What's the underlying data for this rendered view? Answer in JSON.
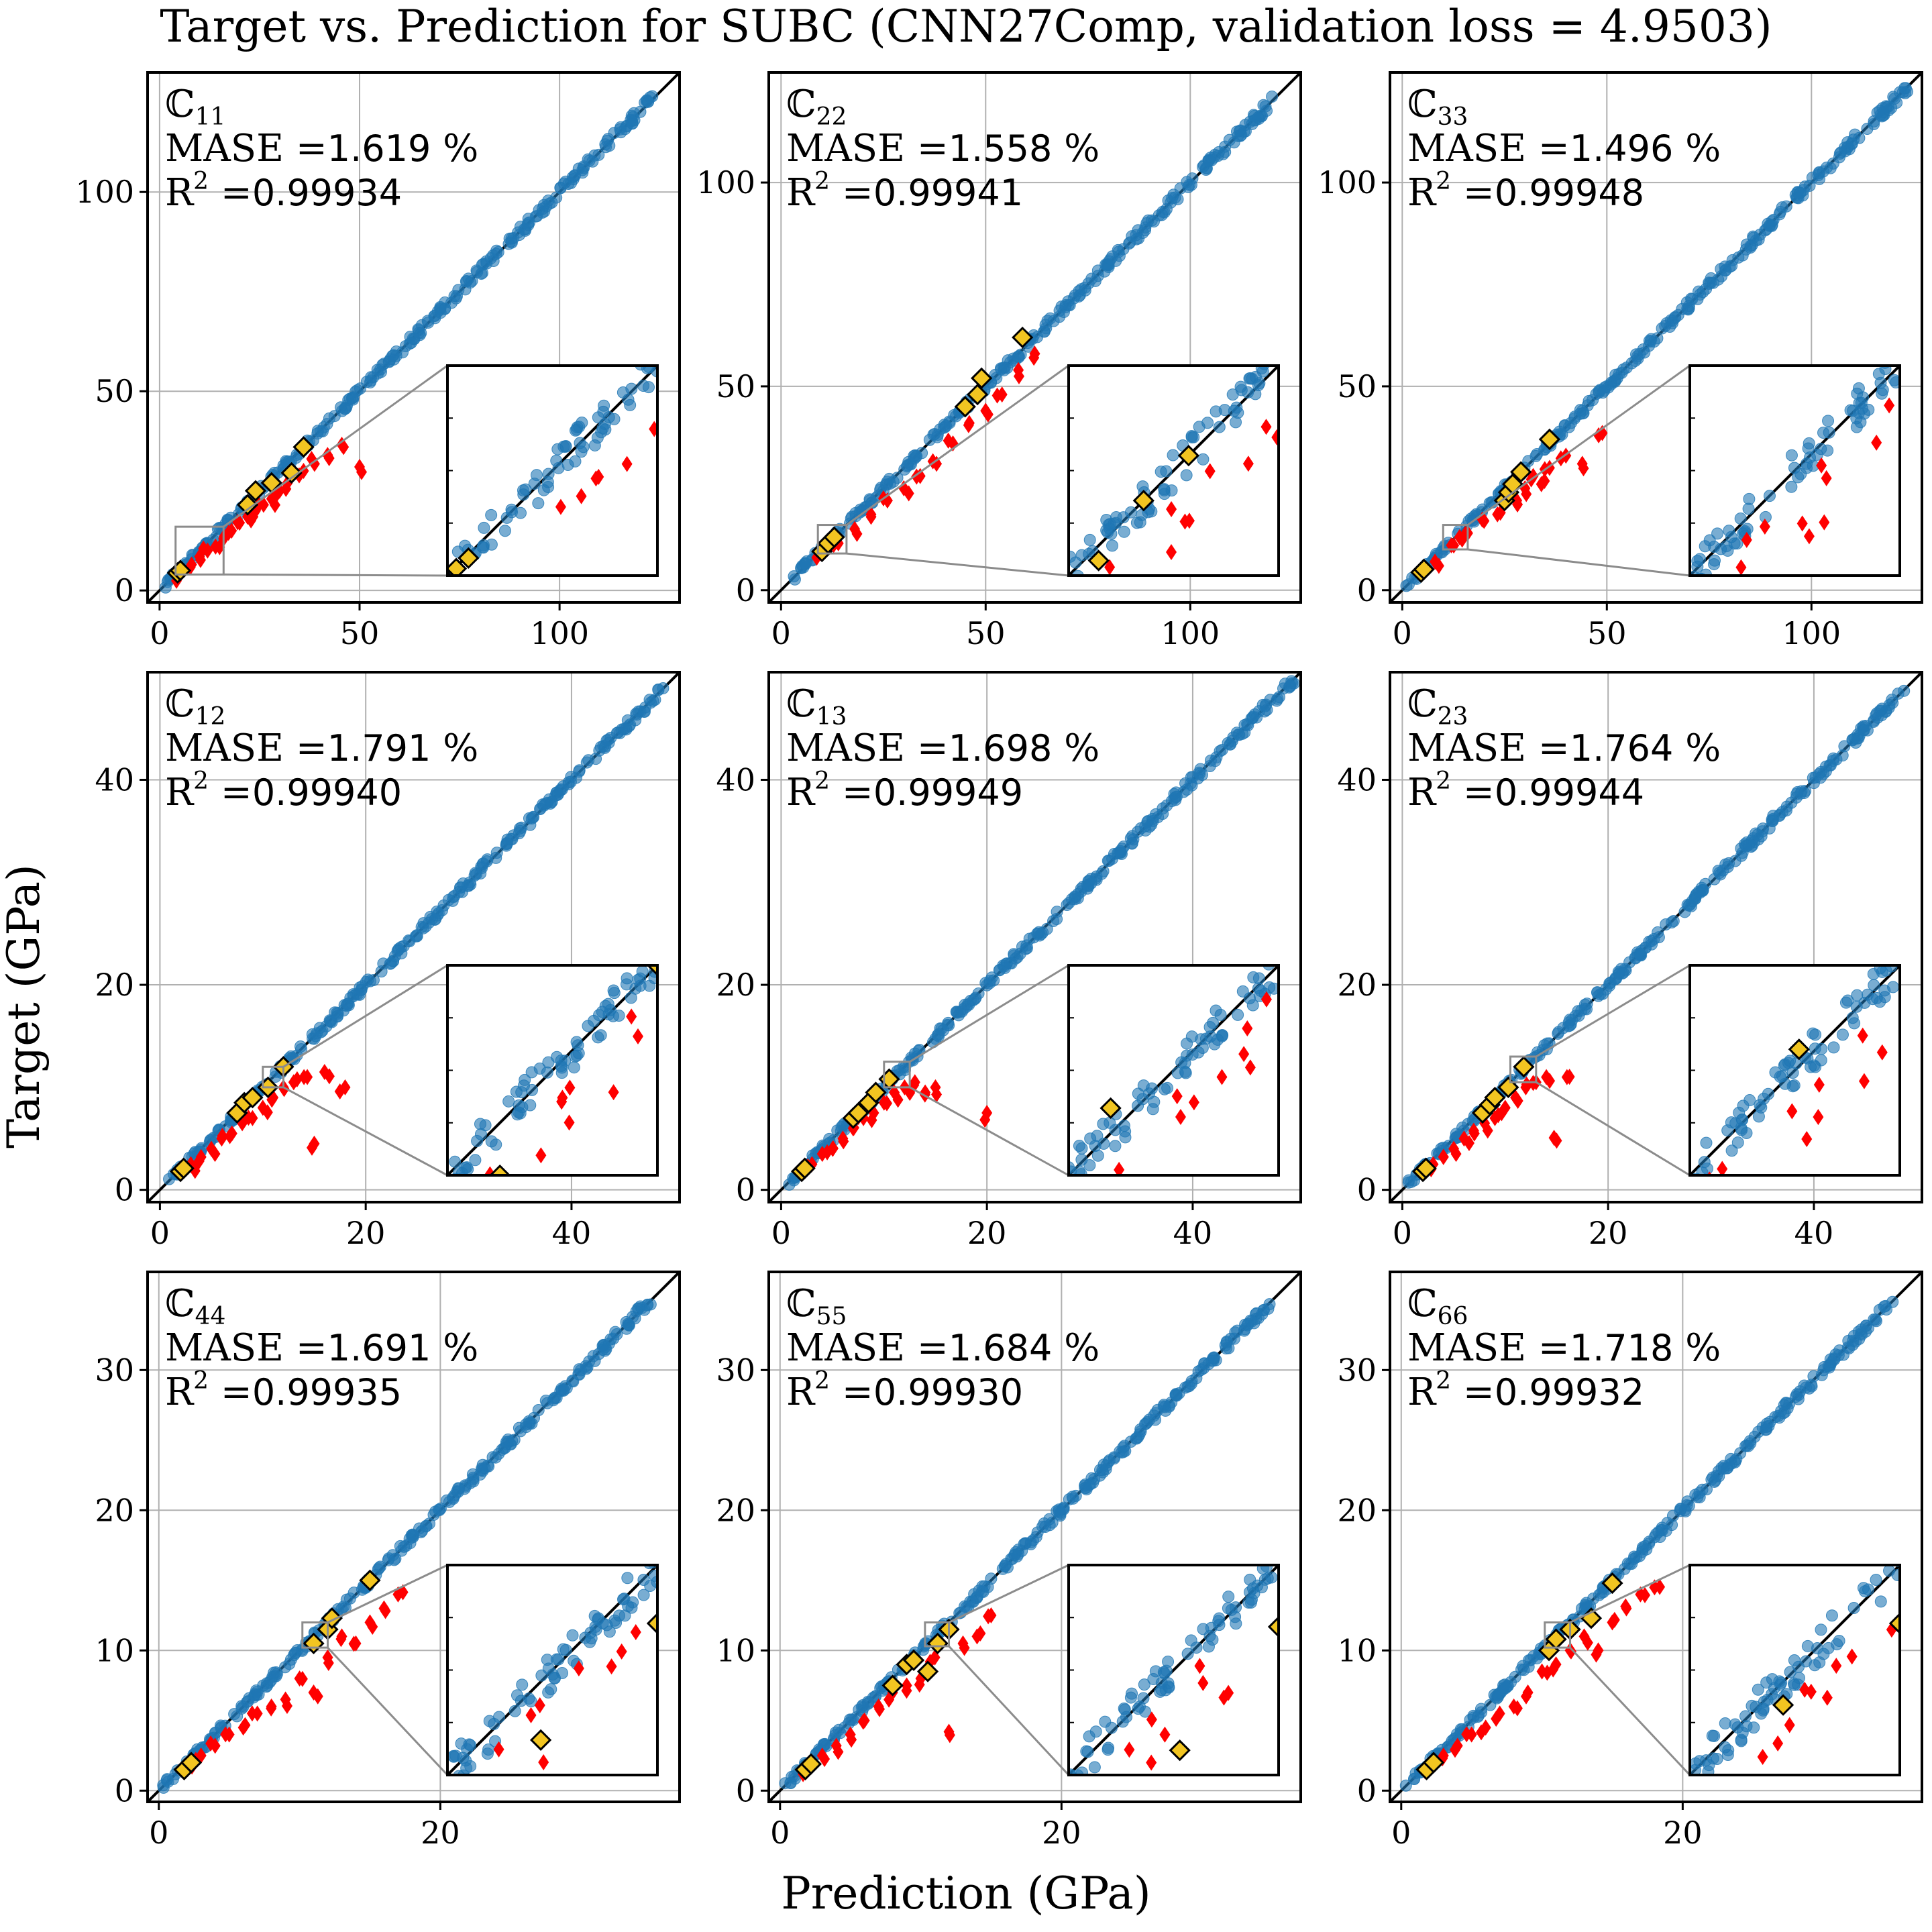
{
  "title": "Target vs. Prediction for SUBC (CNN27Comp,  validation loss = 4.9503)",
  "xlabel": "Prediction (GPa)",
  "ylabel": "Target (GPa)",
  "colors": {
    "blue": "#1f77b4",
    "red": "#ff0000",
    "yellow": "#f2c521",
    "grid": "#b0b0b0",
    "diagonal": "#000000"
  },
  "chart_data": [
    {
      "type": "scatter",
      "component": "ℂ",
      "sub": "11",
      "mase_label": "MASE =",
      "mase": "1.619",
      "mase_unit": " %",
      "r2_label": "R",
      "r2_sup": "2",
      "r2_eq": " =",
      "r2": "0.99934",
      "xlim": [
        -3,
        130
      ],
      "ylim": [
        -3,
        130
      ],
      "xticks": [
        0,
        50,
        100
      ],
      "yticks": [
        0,
        50,
        100
      ],
      "grid": true,
      "inset": {
        "x_range": [
          4,
          16
        ],
        "y_range": [
          4,
          16
        ]
      },
      "blue_x": [
        0.5,
        5,
        10,
        20,
        30,
        40,
        50,
        60,
        70,
        80,
        90,
        100,
        110,
        120,
        124
      ],
      "red_x": [
        4,
        8,
        10,
        12,
        14,
        16,
        18,
        20,
        22,
        24,
        26,
        28,
        30,
        32,
        36,
        38,
        42,
        46,
        50
      ],
      "red_y": [
        3.8,
        6.5,
        8.5,
        10,
        11,
        13,
        15,
        17,
        18.5,
        20,
        21.5,
        23,
        25,
        27,
        30,
        33,
        34,
        36,
        31
      ],
      "yellow_x": [
        4.5,
        5.2,
        22,
        24,
        28,
        33,
        36
      ],
      "yellow_y": [
        4.4,
        5.0,
        21.5,
        25,
        27,
        29.5,
        36
      ]
    },
    {
      "type": "scatter",
      "component": "ℂ",
      "sub": "22",
      "mase_label": "MASE =",
      "mase": "1.558",
      "mase_unit": " %",
      "r2_label": "R",
      "r2_sup": "2",
      "r2_eq": " =",
      "r2": "0.99941",
      "xlim": [
        -3,
        127
      ],
      "ylim": [
        -3,
        127
      ],
      "xticks": [
        0,
        50,
        100
      ],
      "yticks": [
        0,
        50,
        100
      ],
      "grid": true,
      "inset": {
        "x_range": [
          9,
          16
        ],
        "y_range": [
          9,
          16
        ]
      },
      "blue_x": [
        2,
        8,
        15,
        25,
        35,
        45,
        55,
        65,
        75,
        85,
        95,
        105,
        115,
        122
      ],
      "red_x": [
        10,
        14,
        18,
        22,
        26,
        30,
        34,
        38,
        42,
        46,
        50,
        54,
        58,
        62
      ],
      "red_y": [
        9,
        11.5,
        15,
        18,
        22,
        25,
        28,
        31,
        36,
        41,
        44,
        48,
        54,
        58
      ],
      "yellow_x": [
        10,
        11.5,
        13,
        45,
        48,
        49,
        59
      ],
      "yellow_y": [
        9.5,
        11.5,
        13,
        45,
        48,
        52,
        62
      ]
    },
    {
      "type": "scatter",
      "component": "ℂ",
      "sub": "33",
      "mase_label": "MASE =",
      "mase": "1.496",
      "mase_unit": " %",
      "r2_label": "R",
      "r2_sup": "2",
      "r2_eq": " =",
      "r2": "0.99948",
      "xlim": [
        -3,
        127
      ],
      "ylim": [
        -3,
        127
      ],
      "xticks": [
        0,
        50,
        100
      ],
      "yticks": [
        0,
        50,
        100
      ],
      "grid": true,
      "inset": {
        "x_range": [
          10,
          16
        ],
        "y_range": [
          10,
          16
        ]
      },
      "blue_x": [
        1,
        5,
        10,
        20,
        30,
        40,
        50,
        60,
        70,
        80,
        90,
        100,
        110,
        120,
        124
      ],
      "red_x": [
        8,
        12,
        14,
        16,
        20,
        24,
        28,
        30,
        32,
        34,
        36,
        40,
        44,
        48
      ],
      "red_y": [
        7,
        11,
        13,
        14,
        17,
        19,
        22,
        25,
        28,
        26,
        30,
        33,
        31,
        38
      ],
      "yellow_x": [
        4.6,
        5.3,
        25,
        26,
        27,
        29,
        36
      ],
      "yellow_y": [
        4.4,
        5.1,
        22,
        24,
        26,
        29,
        37
      ]
    },
    {
      "type": "scatter",
      "component": "ℂ",
      "sub": "12",
      "mase_label": "MASE =",
      "mase": "1.791",
      "mase_unit": " %",
      "r2_label": "R",
      "r2_sup": "2",
      "r2_eq": " =",
      "r2": "0.99940",
      "xlim": [
        -1.2,
        50.5
      ],
      "ylim": [
        -1.2,
        50.5
      ],
      "xticks": [
        0,
        20,
        40
      ],
      "yticks": [
        0,
        20,
        40
      ],
      "grid": true,
      "inset": {
        "x_range": [
          10,
          12
        ],
        "y_range": [
          10,
          12
        ]
      },
      "blue_x": [
        0.5,
        2,
        4,
        6,
        8,
        10,
        14,
        18,
        22,
        26,
        30,
        34,
        38,
        42,
        46,
        49
      ],
      "red_x": [
        3,
        4,
        5,
        6,
        7,
        8,
        9,
        10,
        11,
        12,
        13,
        14,
        15,
        16,
        18
      ],
      "red_y": [
        2.5,
        3.2,
        4,
        5,
        5.5,
        6.5,
        7,
        8,
        9,
        10,
        10.5,
        11,
        4.5,
        11.5,
        10
      ],
      "yellow_x": [
        2,
        2.3,
        7.5,
        8.2,
        9,
        10.5,
        12
      ],
      "yellow_y": [
        1.8,
        2.1,
        7.5,
        8.5,
        9,
        10,
        12
      ]
    },
    {
      "type": "scatter",
      "component": "ℂ",
      "sub": "13",
      "mase_label": "MASE =",
      "mase": "1.698",
      "mase_unit": " %",
      "r2_label": "R",
      "r2_sup": "2",
      "r2_eq": " =",
      "r2": "0.99949",
      "xlim": [
        -1.2,
        50.5
      ],
      "ylim": [
        -1.2,
        50.5
      ],
      "xticks": [
        0,
        20,
        40
      ],
      "yticks": [
        0,
        20,
        40
      ],
      "grid": true,
      "inset": {
        "x_range": [
          10,
          12.5
        ],
        "y_range": [
          10,
          12.5
        ]
      },
      "blue_x": [
        0.5,
        2,
        4,
        6,
        8,
        10,
        14,
        18,
        22,
        26,
        30,
        34,
        38,
        42,
        46,
        50
      ],
      "red_x": [
        3,
        4,
        5,
        6,
        7,
        8,
        9,
        10,
        11,
        12,
        13,
        14,
        15,
        20
      ],
      "red_y": [
        2.5,
        3.5,
        4,
        5,
        6,
        7,
        7.5,
        8.5,
        9.5,
        10,
        10.5,
        9.5,
        10,
        7.5
      ],
      "yellow_x": [
        2,
        2.3,
        7,
        7.5,
        8.5,
        9.2,
        10.5
      ],
      "yellow_y": [
        1.8,
        2.1,
        7,
        7.5,
        8.5,
        9.5,
        10.8
      ]
    },
    {
      "type": "scatter",
      "component": "ℂ",
      "sub": "23",
      "mase_label": "MASE =",
      "mase": "1.764",
      "mase_unit": " %",
      "r2_label": "R",
      "r2_sup": "2",
      "r2_eq": " =",
      "r2": "0.99944",
      "xlim": [
        -1.2,
        50.5
      ],
      "ylim": [
        -1.2,
        50.5
      ],
      "xticks": [
        0,
        20,
        40
      ],
      "yticks": [
        0,
        20,
        40
      ],
      "grid": true,
      "inset": {
        "x_range": [
          10.5,
          13
        ],
        "y_range": [
          10.5,
          13
        ]
      },
      "blue_x": [
        0.5,
        2,
        4,
        6,
        8,
        10,
        14,
        18,
        22,
        26,
        30,
        34,
        38,
        42,
        46,
        49
      ],
      "red_x": [
        3,
        4,
        5,
        6,
        7,
        8,
        9,
        10,
        11,
        12,
        13,
        14,
        15,
        16
      ],
      "red_y": [
        2.5,
        3.2,
        4,
        5,
        5.5,
        6.5,
        7,
        8,
        9,
        10,
        10.5,
        11,
        4.8,
        11
      ],
      "yellow_x": [
        2,
        2.3,
        7.8,
        8.5,
        9,
        10.3,
        11.8
      ],
      "yellow_y": [
        1.8,
        2.1,
        7.5,
        8.3,
        9,
        10,
        12
      ]
    },
    {
      "type": "scatter",
      "component": "ℂ",
      "sub": "44",
      "mase_label": "MASE =",
      "mase": "1.691",
      "mase_unit": " %",
      "r2_label": "R",
      "r2_sup": "2",
      "r2_eq": " =",
      "r2": "0.99935",
      "xlim": [
        -0.8,
        37
      ],
      "ylim": [
        -0.8,
        37
      ],
      "xticks": [
        0,
        20
      ],
      "yticks": [
        0,
        10,
        20,
        30
      ],
      "grid": true,
      "inset": {
        "x_range": [
          10.2,
          12
        ],
        "y_range": [
          10.2,
          12
        ]
      },
      "blue_x": [
        0.3,
        1.5,
        3,
        5,
        7,
        9,
        11,
        14,
        17,
        20,
        23,
        26,
        29,
        32,
        35
      ],
      "red_x": [
        2,
        3,
        4,
        5,
        6,
        7,
        8,
        9,
        10,
        11,
        12,
        13,
        14,
        15,
        16,
        17
      ],
      "red_y": [
        1.7,
        2.5,
        3.2,
        4,
        4.5,
        5.5,
        6,
        6.5,
        8,
        7,
        9.5,
        11,
        10.5,
        12,
        13,
        14
      ],
      "yellow_x": [
        1.8,
        2.3,
        11,
        12,
        12.3,
        15
      ],
      "yellow_y": [
        1.5,
        2,
        10.5,
        11.5,
        12.3,
        15
      ]
    },
    {
      "type": "scatter",
      "component": "ℂ",
      "sub": "55",
      "mase_label": "MASE =",
      "mase": "1.684",
      "mase_unit": " %",
      "r2_label": "R",
      "r2_sup": "2",
      "r2_eq": " =",
      "r2": "0.99930",
      "xlim": [
        -0.8,
        37
      ],
      "ylim": [
        -0.8,
        37
      ],
      "xticks": [
        0,
        20
      ],
      "yticks": [
        0,
        10,
        20,
        30
      ],
      "grid": true,
      "inset": {
        "x_range": [
          10.3,
          12
        ],
        "y_range": [
          10.3,
          12
        ]
      },
      "blue_x": [
        0.3,
        1.5,
        3,
        5,
        7,
        9,
        11,
        14,
        17,
        20,
        23,
        26,
        29,
        32,
        35
      ],
      "red_x": [
        2,
        3,
        4,
        5,
        6,
        7,
        8,
        9,
        10,
        11,
        12,
        13,
        14,
        15
      ],
      "red_y": [
        1.7,
        2.5,
        3.2,
        4,
        5,
        6,
        7,
        7.5,
        8,
        9.5,
        4.2,
        10.5,
        11,
        12.5
      ],
      "yellow_x": [
        1.8,
        2.2,
        8,
        9,
        9.5,
        10.5,
        11.2,
        12
      ],
      "yellow_y": [
        1.5,
        1.9,
        7.5,
        9,
        9.3,
        8.5,
        10.5,
        11.5
      ]
    },
    {
      "type": "scatter",
      "component": "ℂ",
      "sub": "66",
      "mase_label": "MASE =",
      "mase": "1.718",
      "mase_unit": " %",
      "r2_label": "R",
      "r2_sup": "2",
      "r2_eq": " =",
      "r2": "0.99932",
      "xlim": [
        -0.8,
        37
      ],
      "ylim": [
        -0.8,
        37
      ],
      "xticks": [
        0,
        20
      ],
      "yticks": [
        0,
        10,
        20,
        30
      ],
      "grid": true,
      "inset": {
        "x_range": [
          10.2,
          12
        ],
        "y_range": [
          10.2,
          12
        ]
      },
      "blue_x": [
        0.3,
        1.5,
        3,
        5,
        7,
        9,
        11,
        14,
        17,
        20,
        23,
        26,
        29,
        32,
        35
      ],
      "red_x": [
        2,
        3,
        4,
        5,
        6,
        7,
        8,
        9,
        10,
        11,
        12,
        13,
        14,
        15,
        16,
        17,
        18
      ],
      "red_y": [
        1.7,
        2.5,
        3.2,
        4,
        4.5,
        5.5,
        6,
        7,
        8.5,
        9,
        10,
        11,
        10,
        12,
        13,
        14,
        14.5
      ],
      "yellow_x": [
        1.8,
        2.3,
        10.5,
        11,
        12,
        13.5,
        15
      ],
      "yellow_y": [
        1.5,
        2,
        10,
        10.8,
        11.5,
        12.3,
        14.8
      ]
    }
  ]
}
